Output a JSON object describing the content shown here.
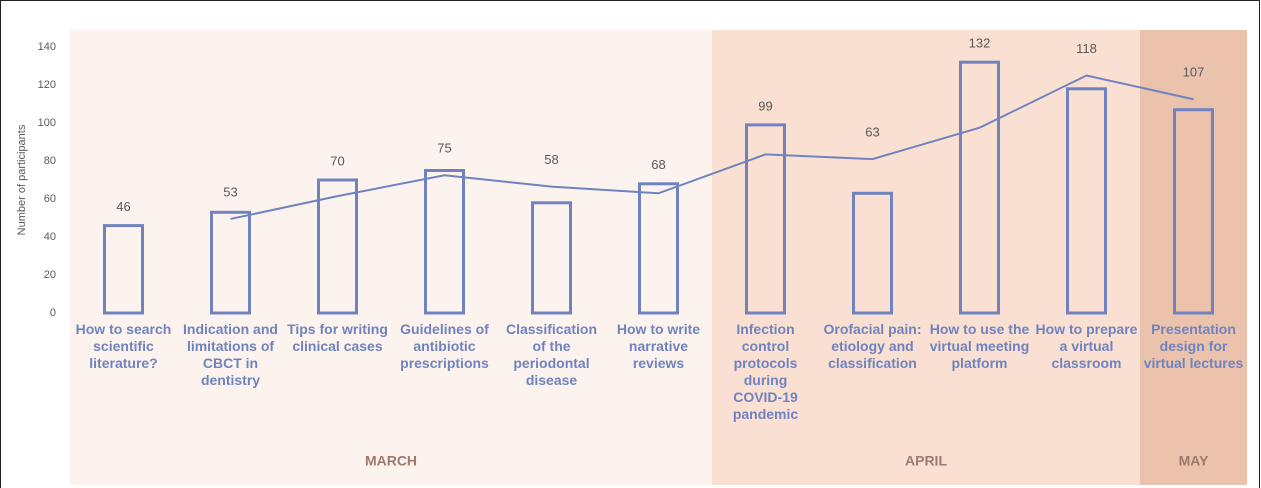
{
  "chart_data": {
    "type": "bar",
    "y_label": "Number of participants",
    "categories": [
      "How to search scientific literature?",
      "Indication and limitations of CBCT in dentistry",
      "Tips for writing clinical cases",
      "Guidelines of antibiotic prescriptions",
      "Classification of the periodontal disease",
      "How to write narrative reviews",
      "Infection control protocols during COVID-19 pandemic",
      "Orofacial pain: etiology and classification",
      "How to use the virtual meeting platform",
      "How to prepare a virtual classroom",
      "Presentation design for virtual lectures"
    ],
    "values": [
      46,
      53,
      70,
      75,
      58,
      68,
      99,
      63,
      132,
      118,
      107
    ],
    "trend": [
      null,
      49.5,
      61.5,
      72.5,
      66.5,
      63,
      83.5,
      81,
      97.5,
      125,
      112.5
    ],
    "color": "#7083bf",
    "groups": [
      {
        "label": "MARCH",
        "count": 6,
        "color": "#fdf3ee"
      },
      {
        "label": "APRIL",
        "count": 4,
        "color": "#f9e0d2"
      },
      {
        "label": "MAY",
        "count": 1,
        "color": "#ebc3ad"
      }
    ],
    "ylim": [
      0,
      140
    ],
    "yticks": [
      0,
      20,
      40,
      60,
      80,
      100,
      120,
      140
    ],
    "grid": false
  }
}
